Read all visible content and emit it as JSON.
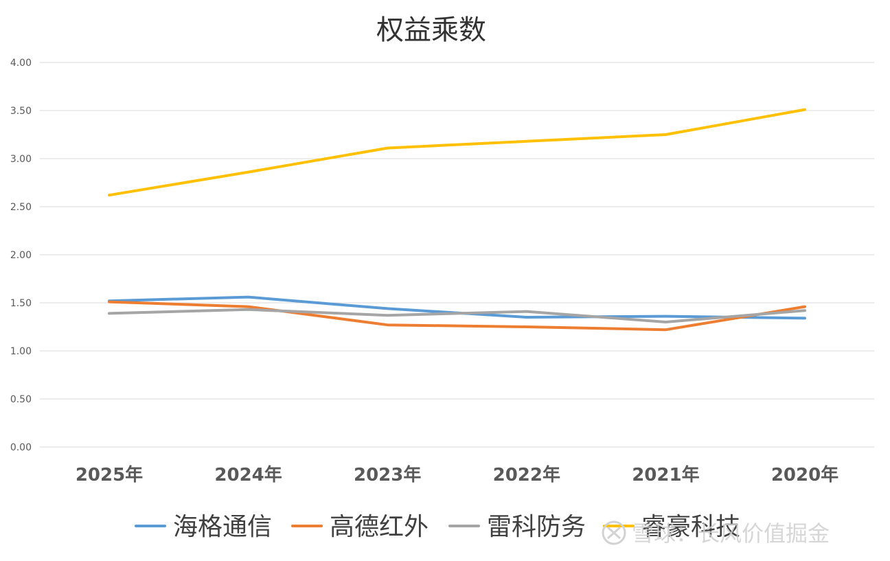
{
  "chart_data": {
    "type": "line",
    "title": "权益乘数",
    "xlabel": "",
    "ylabel": "",
    "categories": [
      "2025年",
      "2024年",
      "2023年",
      "2022年",
      "2021年",
      "2020年"
    ],
    "ylim": [
      0,
      4
    ],
    "yticks": [
      "0.00",
      "0.50",
      "1.00",
      "1.50",
      "2.00",
      "2.50",
      "3.00",
      "3.50",
      "4.00"
    ],
    "ytick_values": [
      0,
      0.5,
      1,
      1.5,
      2,
      2.5,
      3,
      3.5,
      4
    ],
    "grid": true,
    "legend_position": "bottom",
    "series": [
      {
        "name": "海格通信",
        "color": "#5B9BD5",
        "values": [
          1.52,
          1.56,
          1.44,
          1.35,
          1.36,
          1.34
        ]
      },
      {
        "name": "高德红外",
        "color": "#ED7D31",
        "values": [
          1.51,
          1.46,
          1.27,
          1.25,
          1.22,
          1.46
        ]
      },
      {
        "name": "雷科防务",
        "color": "#A5A5A5",
        "values": [
          1.39,
          1.43,
          1.37,
          1.41,
          1.3,
          1.42
        ]
      },
      {
        "name": "睿豪科技",
        "color": "#FFC000",
        "values": [
          2.62,
          2.86,
          3.11,
          3.18,
          3.25,
          3.51
        ]
      }
    ]
  },
  "watermark": {
    "text": "雪球：长风价值掘金"
  }
}
